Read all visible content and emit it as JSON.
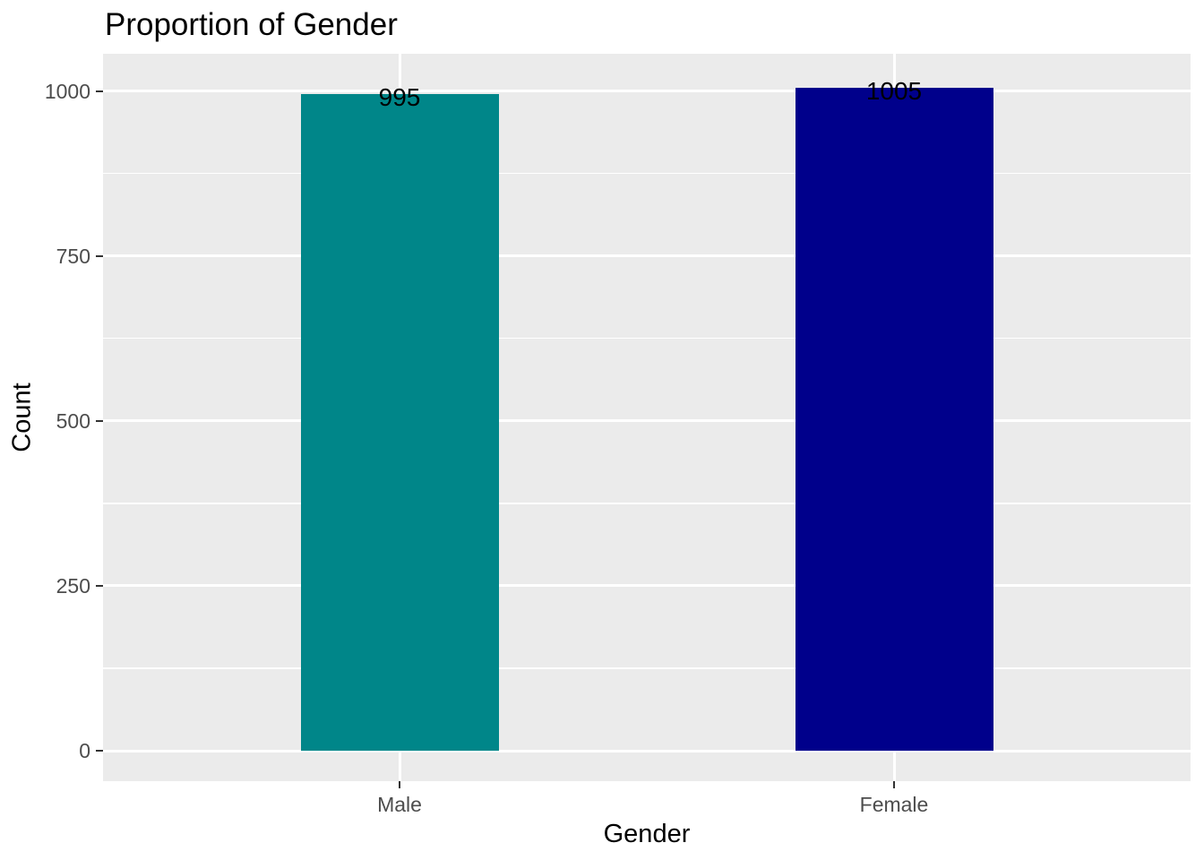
{
  "title": "Proportion of Gender",
  "chart_data": {
    "type": "bar",
    "title": "Proportion of Gender",
    "xlabel": "Gender",
    "ylabel": "Count",
    "categories": [
      "Male",
      "Female"
    ],
    "values": [
      995,
      1005
    ],
    "bar_labels": [
      "995",
      "1005"
    ],
    "bar_colors": [
      "#008689",
      "#00008B"
    ],
    "y_major_ticks": [
      0,
      250,
      500,
      750,
      1000
    ],
    "y_minor_ticks": [
      125,
      375,
      625,
      875
    ],
    "ylim": [
      -52,
      1052
    ],
    "grid": "on",
    "legend_position": "none",
    "style": {
      "panel_background": "#EBEBEB",
      "grid_color": "#FFFFFF",
      "axis_text_color": "#4D4D4D",
      "tick_mark_color": "#333333",
      "title_color": "#000000",
      "page_background": "#FFFFFF"
    }
  }
}
